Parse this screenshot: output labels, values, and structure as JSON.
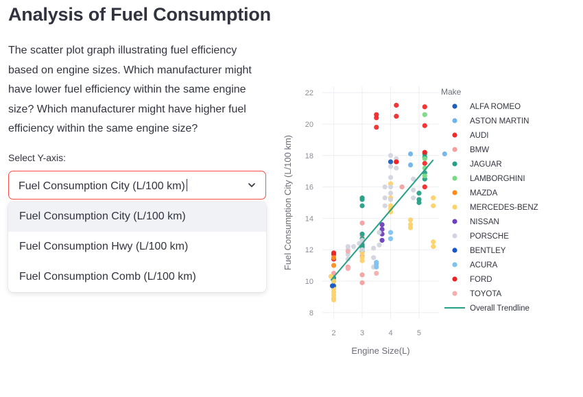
{
  "page": {
    "title": "Analysis of Fuel Consumption",
    "description": "The scatter plot graph illustrating fuel efficiency based on engine sizes. Which manufacturer might have lower fuel efficiency within the same engine size? Which manufacturer might have higher fuel efficiency within the same engine size?"
  },
  "select": {
    "label": "Select Y-axis:",
    "value": "Fuel Consumption City (L/100 km)",
    "options": [
      "Fuel Consumption City (L/100 km)",
      "Fuel Consumption Hwy (L/100 km)",
      "Fuel Consumption Comb (L/100 km)"
    ]
  },
  "chart_data": {
    "type": "scatter",
    "title": "",
    "xlabel": "Engine Size(L)",
    "ylabel": "Fuel Consumption City (L/100 km)",
    "xlim": [
      1.6,
      5.7
    ],
    "ylim": [
      7.6,
      22.4
    ],
    "xticks": [
      2,
      3,
      4,
      5
    ],
    "yticks": [
      8,
      10,
      12,
      14,
      16,
      18,
      20,
      22
    ],
    "legend_title": "Make",
    "legend_position": "right",
    "series": [
      {
        "name": "ALFA ROMEO",
        "color": "#1f5fb4",
        "points": [
          [
            2.0,
            9.7
          ],
          [
            4.0,
            17.6
          ]
        ]
      },
      {
        "name": "ASTON MARTIN",
        "color": "#6fb4ec",
        "points": [
          [
            4.7,
            18.1
          ],
          [
            4.7,
            17.4
          ],
          [
            5.9,
            18.1
          ]
        ]
      },
      {
        "name": "AUDI",
        "color": "#ef2b2b",
        "points": [
          [
            2.0,
            11.7
          ],
          [
            2.0,
            11.4
          ],
          [
            3.0,
            12.2
          ],
          [
            3.5,
            20.6
          ],
          [
            3.5,
            20.4
          ],
          [
            3.5,
            19.8
          ],
          [
            4.2,
            21.2
          ],
          [
            4.2,
            20.5
          ],
          [
            4.2,
            17.6
          ],
          [
            5.2,
            21.1
          ],
          [
            5.2,
            19.9
          ],
          [
            5.2,
            17.5
          ],
          [
            5.2,
            16.0
          ]
        ]
      },
      {
        "name": "BMW",
        "color": "#f4a0a0",
        "points": [
          [
            2.0,
            10.5
          ],
          [
            2.0,
            10.2
          ],
          [
            2.5,
            10.9
          ],
          [
            3.0,
            13.7
          ],
          [
            3.0,
            12.9
          ],
          [
            3.0,
            12.4
          ],
          [
            3.0,
            11.9
          ],
          [
            3.0,
            11.6
          ],
          [
            3.0,
            10.4
          ],
          [
            3.0,
            9.9
          ],
          [
            4.4,
            16.0
          ]
        ]
      },
      {
        "name": "JAGUAR",
        "color": "#26a085",
        "points": [
          [
            2.0,
            10.2
          ],
          [
            2.0,
            10.0
          ],
          [
            3.0,
            15.3
          ],
          [
            3.0,
            15.2
          ],
          [
            3.0,
            14.8
          ],
          [
            3.0,
            13.0
          ],
          [
            3.0,
            12.7
          ],
          [
            3.0,
            12.3
          ],
          [
            3.0,
            12.1
          ],
          [
            3.0,
            11.9
          ],
          [
            5.0,
            15.6
          ],
          [
            5.0,
            15.2
          ],
          [
            5.0,
            15.0
          ],
          [
            5.2,
            18.1
          ],
          [
            5.2,
            17.9
          ],
          [
            5.2,
            16.9
          ],
          [
            5.2,
            16.5
          ]
        ]
      },
      {
        "name": "LAMBORGHINI",
        "color": "#7ad987",
        "points": [
          [
            5.2,
            20.6
          ],
          [
            5.2,
            17.8
          ],
          [
            5.2,
            17.2
          ],
          [
            5.2,
            16.7
          ]
        ]
      },
      {
        "name": "MAZDA",
        "color": "#ff8c1a",
        "points": [
          [
            2.0,
            11.5
          ],
          [
            2.0,
            11.0
          ]
        ]
      },
      {
        "name": "MERCEDES-BENZ",
        "color": "#fdd26a",
        "points": [
          [
            1.9,
            10.3
          ],
          [
            2.0,
            10.0
          ],
          [
            2.0,
            9.5
          ],
          [
            2.0,
            9.1
          ],
          [
            2.0,
            8.9
          ],
          [
            2.0,
            8.8
          ],
          [
            2.0,
            9.3
          ],
          [
            3.0,
            11.8
          ],
          [
            3.0,
            11.5
          ],
          [
            3.0,
            11.3
          ],
          [
            4.0,
            16.2
          ],
          [
            4.0,
            15.3
          ],
          [
            4.0,
            14.8
          ],
          [
            4.0,
            14.6
          ],
          [
            4.0,
            14.4
          ],
          [
            4.7,
            13.9
          ],
          [
            4.7,
            13.6
          ],
          [
            4.7,
            13.4
          ],
          [
            5.5,
            15.3
          ],
          [
            5.5,
            14.8
          ],
          [
            5.5,
            12.5
          ],
          [
            5.5,
            12.2
          ]
        ]
      },
      {
        "name": "NISSAN",
        "color": "#6e3fbd",
        "points": [
          [
            3.7,
            13.6
          ],
          [
            3.7,
            13.3
          ],
          [
            3.7,
            13.0
          ],
          [
            3.7,
            12.6
          ]
        ]
      },
      {
        "name": "PORSCHE",
        "color": "#d3d5de",
        "points": [
          [
            2.5,
            12.2
          ],
          [
            2.5,
            12.0
          ],
          [
            2.5,
            11.7
          ],
          [
            2.5,
            11.4
          ],
          [
            2.7,
            12.2
          ],
          [
            2.9,
            12.4
          ],
          [
            3.0,
            12.6
          ],
          [
            3.0,
            12.0
          ],
          [
            3.4,
            12.1
          ],
          [
            3.4,
            11.5
          ],
          [
            3.4,
            10.9
          ],
          [
            3.6,
            13.1
          ],
          [
            3.6,
            12.3
          ],
          [
            3.8,
            16.0
          ],
          [
            3.8,
            15.3
          ],
          [
            3.8,
            14.8
          ],
          [
            4.0,
            18.0
          ],
          [
            4.0,
            17.3
          ],
          [
            4.0,
            16.6
          ],
          [
            4.0,
            16.0
          ],
          [
            4.0,
            15.6
          ],
          [
            4.0,
            15.2
          ],
          [
            4.2,
            17.8
          ],
          [
            4.2,
            17.2
          ],
          [
            4.8,
            16.5
          ],
          [
            4.8,
            15.8
          ],
          [
            4.8,
            15.3
          ]
        ]
      },
      {
        "name": "BENTLEY",
        "color": "#1857c8",
        "points": [
          [
            1.95,
            9.7
          ]
        ]
      },
      {
        "name": "ACURA",
        "color": "#7ec2f2",
        "points": [
          [
            3.5,
            11.1
          ],
          [
            3.5,
            10.9
          ],
          [
            3.5,
            11.2
          ],
          [
            4.0,
            13.1
          ],
          [
            4.0,
            12.7
          ]
        ]
      },
      {
        "name": "FORD",
        "color": "#ea2424",
        "points": [
          [
            2.0,
            11.8
          ],
          [
            4.2,
            17.6
          ],
          [
            5.2,
            18.2
          ]
        ]
      },
      {
        "name": "TOYOTA",
        "color": "#f3aeae",
        "points": [
          [
            2.5,
            11.9
          ],
          [
            2.5,
            10.8
          ],
          [
            3.5,
            10.5
          ]
        ]
      }
    ],
    "trendline": {
      "name": "Overall Trendline",
      "color": "#26a085",
      "x": [
        1.9,
        5.5
      ],
      "y": [
        10.05,
        17.72
      ]
    }
  }
}
